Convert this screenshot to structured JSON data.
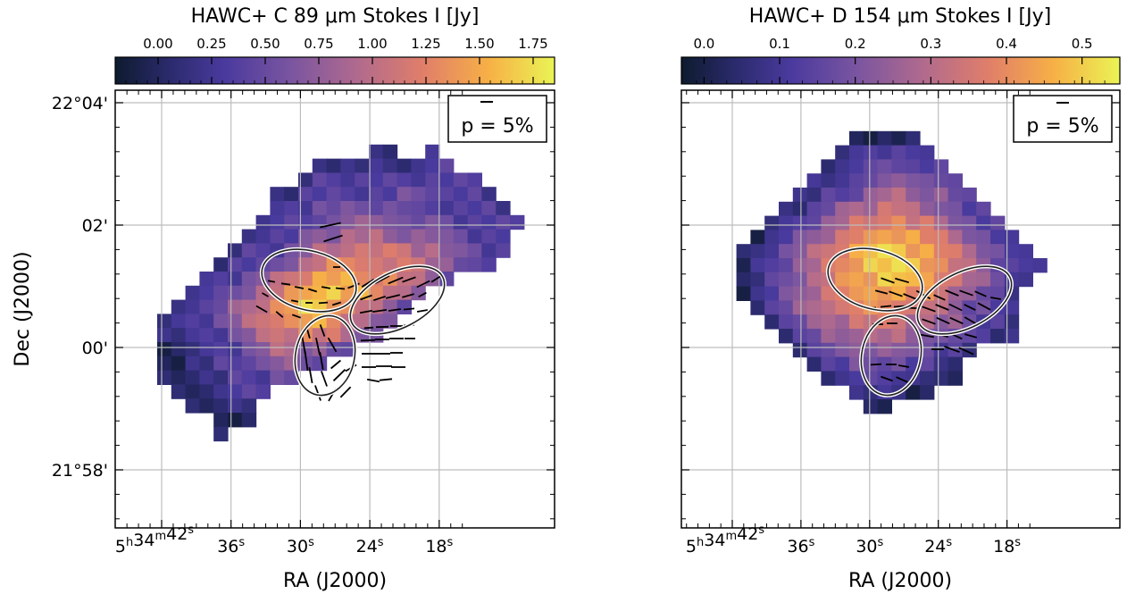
{
  "chart_data": [
    {
      "type": "heatmap",
      "title": "HAWC+ C 89 μm Stokes I [Jy]",
      "xlabel": "RA (J2000)",
      "ylabel": "Dec (J2000)",
      "xticks": [
        {
          "label": "5h34m42s",
          "ra_sec": 42
        },
        {
          "label": "36s",
          "ra_sec": 36
        },
        {
          "label": "30s",
          "ra_sec": 30
        },
        {
          "label": "24s",
          "ra_sec": 24
        },
        {
          "label": "18s",
          "ra_sec": 18
        }
      ],
      "yticks": [
        {
          "label": "22°04'",
          "dec_arcmin": 4
        },
        {
          "label": "02'",
          "dec_arcmin": 2
        },
        {
          "label": "00'",
          "dec_arcmin": 0
        },
        {
          "label": "21°58'",
          "dec_arcmin": -2
        }
      ],
      "colorbar": {
        "colormap": "plasma-like (dark navy → purple → orange → yellow)",
        "range": [
          -0.2,
          1.85
        ],
        "ticks": [
          "0.00",
          "0.25",
          "0.50",
          "0.75",
          "1.00",
          "1.25",
          "1.50",
          "1.75"
        ]
      },
      "legend_box": {
        "text": "p = 5%",
        "position": "top-right"
      },
      "peak_value_approx": 1.75,
      "ellipse_count": 3,
      "grid": true
    },
    {
      "type": "heatmap",
      "title": "HAWC+ D 154 μm Stokes I [Jy]",
      "xlabel": "RA (J2000)",
      "ylabel": "",
      "xticks": [
        {
          "label": "5h34m42s",
          "ra_sec": 42
        },
        {
          "label": "36s",
          "ra_sec": 36
        },
        {
          "label": "30s",
          "ra_sec": 30
        },
        {
          "label": "24s",
          "ra_sec": 24
        },
        {
          "label": "18s",
          "ra_sec": 18
        }
      ],
      "yticks": [],
      "colorbar": {
        "colormap": "plasma-like (dark navy → purple → orange → yellow)",
        "range": [
          -0.03,
          0.55
        ],
        "ticks": [
          "0.0",
          "0.1",
          "0.2",
          "0.3",
          "0.4",
          "0.5"
        ]
      },
      "legend_box": {
        "text": "p = 5%",
        "position": "top-right"
      },
      "peak_value_approx": 0.55,
      "ellipse_count": 3,
      "grid": true
    }
  ]
}
